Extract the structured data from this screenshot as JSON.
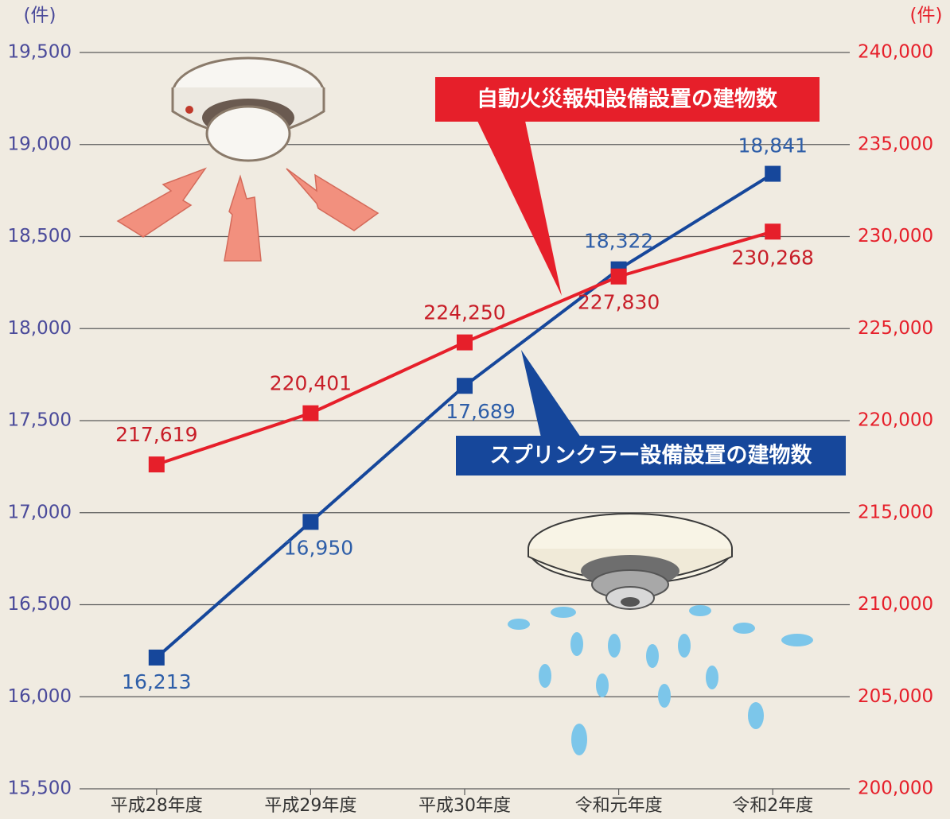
{
  "chart_data": {
    "type": "line",
    "y_unit": "(件)",
    "y2_unit": "(件)",
    "categories": [
      "平成28年度",
      "平成29年度",
      "平成30年度",
      "令和元年度",
      "令和2年度"
    ],
    "series": [
      {
        "name": "スプリンクラー設備設置の建物数",
        "color": "#16479b",
        "values": [
          16213,
          16950,
          17689,
          18322,
          18841
        ],
        "value_labels": [
          "16,213",
          "16,950",
          "17,689",
          "18,322",
          "18,841"
        ]
      },
      {
        "name": "自動火災報知設備設置の建物数",
        "color": "#e61f2a",
        "axis": "y2",
        "values": [
          217619,
          220401,
          224250,
          227830,
          230268
        ],
        "value_labels": [
          "217,619",
          "220,401",
          "224,250",
          "227,830",
          "230,268"
        ]
      }
    ],
    "ylim": [
      15500,
      19500
    ],
    "yticks": [
      {
        "value": 15500,
        "label": "15,500"
      },
      {
        "value": 16000,
        "label": "16,000"
      },
      {
        "value": 16500,
        "label": "16,500"
      },
      {
        "value": 17000,
        "label": "17,000"
      },
      {
        "value": 17500,
        "label": "17,500"
      },
      {
        "value": 18000,
        "label": "18,000"
      },
      {
        "value": 18500,
        "label": "18,500"
      },
      {
        "value": 19000,
        "label": "19,000"
      },
      {
        "value": 19500,
        "label": "19,500"
      }
    ],
    "y2lim": [
      200000,
      240000
    ],
    "y2ticks": [
      {
        "value": 200000,
        "label": "200,000"
      },
      {
        "value": 205000,
        "label": "205,000"
      },
      {
        "value": 210000,
        "label": "210,000"
      },
      {
        "value": 215000,
        "label": "215,000"
      },
      {
        "value": 220000,
        "label": "220,000"
      },
      {
        "value": 225000,
        "label": "225,000"
      },
      {
        "value": 230000,
        "label": "230,000"
      },
      {
        "value": 235000,
        "label": "235,000"
      },
      {
        "value": 240000,
        "label": "240,000"
      }
    ],
    "grid": true
  }
}
